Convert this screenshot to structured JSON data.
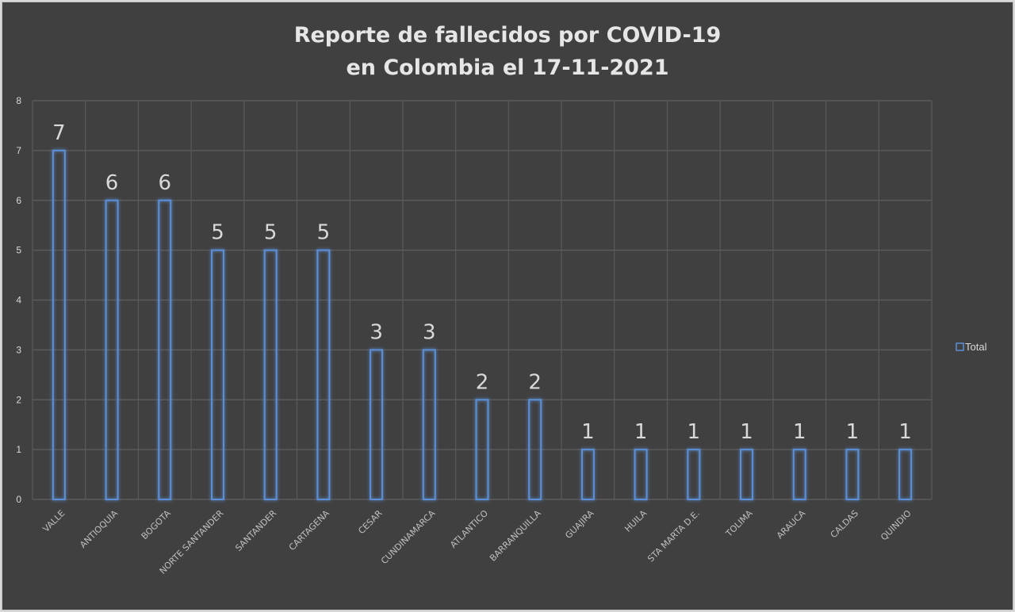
{
  "chart_data": {
    "type": "bar",
    "title": [
      "Reporte de fallecidos por COVID-19",
      "en Colombia el 17-11-2021"
    ],
    "categories": [
      "VALLE",
      "ANTIOQUIA",
      "BOGOTA",
      "NORTE SANTANDER",
      "SANTANDER",
      "CARTAGENA",
      "CESAR",
      "CUNDINAMARCA",
      "ATLANTICO",
      "BARRANQUILLA",
      "GUAJIRA",
      "HUILA",
      "STA MARTA D.E.",
      "TOLIMA",
      "ARAUCA",
      "CALDAS",
      "QUINDIO"
    ],
    "series": [
      {
        "name": "Total",
        "values": [
          7,
          6,
          6,
          5,
          5,
          5,
          3,
          3,
          2,
          2,
          1,
          1,
          1,
          1,
          1,
          1,
          1
        ]
      }
    ],
    "ylim": [
      0,
      8
    ],
    "yticks": [
      0,
      1,
      2,
      3,
      4,
      5,
      6,
      7,
      8
    ],
    "xlabel": "",
    "ylabel": "",
    "grid": true,
    "legend": "right",
    "colors": {
      "bar": "#5b8fd6",
      "background": "#404040",
      "grid": "#5a5a5a"
    }
  }
}
